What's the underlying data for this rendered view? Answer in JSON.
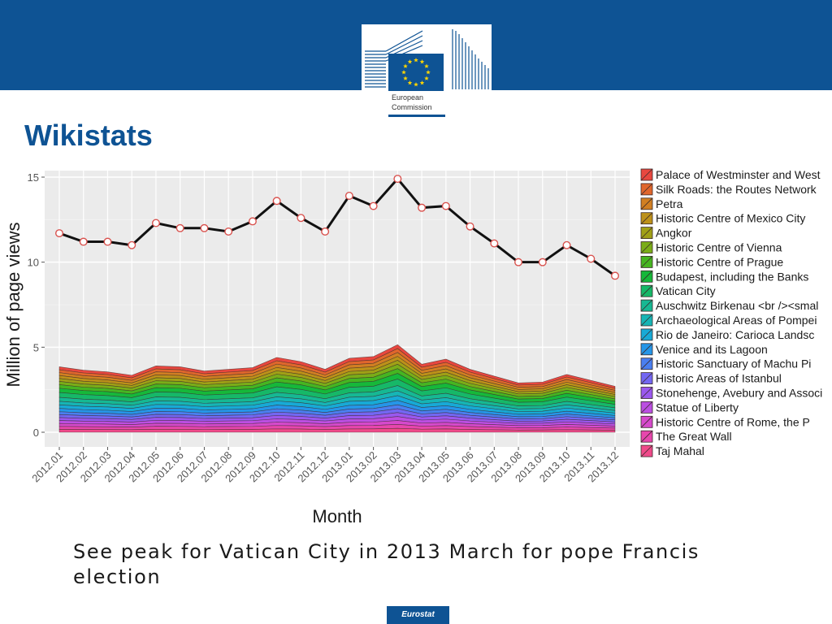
{
  "header": {
    "logo_line1": "European",
    "logo_line2": "Commission",
    "slide_title": "Wikistats"
  },
  "caption": "See peak for Vatican City in 2013 March for pope Francis election",
  "footer": {
    "label": "Eurostat"
  },
  "chart_data": {
    "type": "area",
    "stacked": true,
    "xlabel": "Month",
    "ylabel": "Million of page views",
    "ylim": [
      0,
      15
    ],
    "yticks": [
      0,
      5,
      10,
      15
    ],
    "grid": true,
    "legend_position": "right",
    "categories": [
      "2012.01",
      "2012.02",
      "2012.03",
      "2012.04",
      "2012.05",
      "2012.06",
      "2012.07",
      "2012.08",
      "2012.09",
      "2012.10",
      "2012.11",
      "2012.12",
      "2013.01",
      "2013.02",
      "2013.03",
      "2013.04",
      "2013.05",
      "2013.06",
      "2013.07",
      "2013.08",
      "2013.09",
      "2013.10",
      "2013.11",
      "2013.12"
    ],
    "total_line": {
      "values": [
        11.7,
        11.2,
        11.2,
        11.0,
        12.3,
        12.0,
        12.0,
        11.8,
        12.4,
        13.6,
        12.6,
        11.8,
        13.9,
        13.3,
        14.9,
        13.2,
        13.3,
        12.1,
        11.1,
        10.0,
        10.0,
        11.0,
        10.2,
        9.2
      ],
      "color": "#111111",
      "marker_fill": "#ffffff",
      "marker_edge": "#d9534f"
    },
    "stack_totals": [
      3.85,
      3.65,
      3.55,
      3.35,
      3.9,
      3.85,
      3.6,
      3.7,
      3.8,
      4.4,
      4.15,
      3.7,
      4.35,
      4.45,
      5.15,
      4.0,
      4.3,
      3.7,
      3.3,
      2.9,
      2.95,
      3.4,
      3.05,
      2.7
    ],
    "series": [
      {
        "name": "Palace of Westminster and West",
        "color": "#e8473f"
      },
      {
        "name": "Silk Roads: the Routes Network",
        "color": "#e0662c"
      },
      {
        "name": "Petra",
        "color": "#d17f22"
      },
      {
        "name": "Historic Centre of Mexico City",
        "color": "#bd9119"
      },
      {
        "name": "Angkor",
        "color": "#a0a016"
      },
      {
        "name": "Historic Centre of Vienna",
        "color": "#7aad18"
      },
      {
        "name": "Historic Centre of Prague",
        "color": "#46b521"
      },
      {
        "name": "Budapest, including the Banks",
        "color": "#16b83a"
      },
      {
        "name": "Vatican City",
        "color": "#16b868"
      },
      {
        "name": "Auschwitz Birkenau <br /><smal",
        "color": "#16b893"
      },
      {
        "name": "Archaeological Areas of Pompei",
        "color": "#16b5b5"
      },
      {
        "name": "Rio de Janeiro: Carioca Landsc",
        "color": "#17aad6"
      },
      {
        "name": "Venice and its Lagoon",
        "color": "#2596e8"
      },
      {
        "name": "Historic Sanctuary of Machu Pi",
        "color": "#4a7ff0"
      },
      {
        "name": "Historic Areas of Istanbul",
        "color": "#7367f2"
      },
      {
        "name": "Stonehenge, Avebury and Associ",
        "color": "#9a58ee"
      },
      {
        "name": "Statue of Liberty",
        "color": "#bb4fe2"
      },
      {
        "name": "Historic Centre of Rome, the P",
        "color": "#d649cc"
      },
      {
        "name": "The Great Wall",
        "color": "#e746ad"
      },
      {
        "name": "Taj Mahal",
        "color": "#ef4a8a"
      }
    ]
  }
}
